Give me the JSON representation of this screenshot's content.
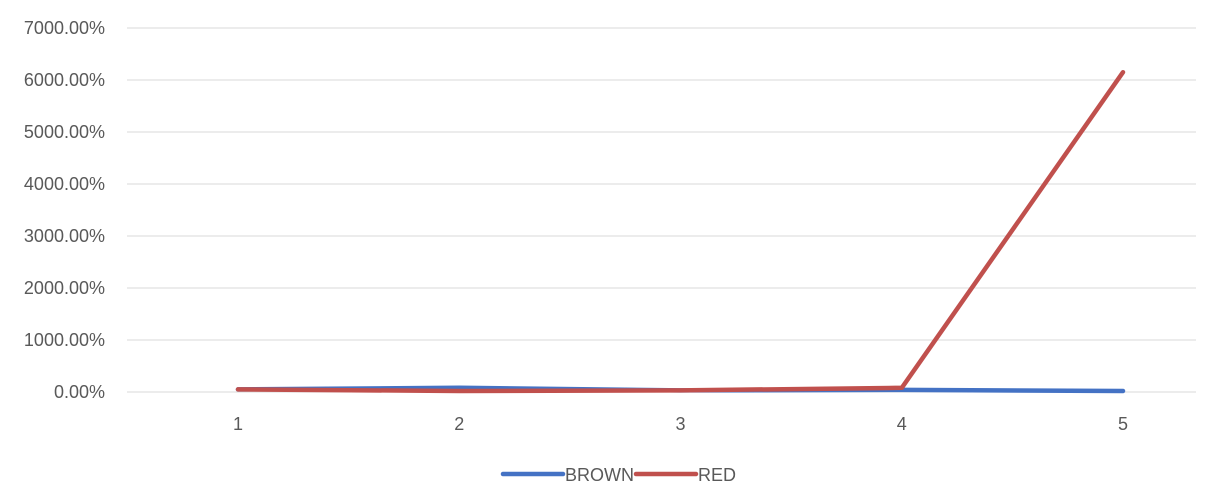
{
  "chart_data": {
    "type": "line",
    "title": "",
    "xlabel": "",
    "ylabel": "",
    "categories": [
      "1",
      "2",
      "3",
      "4",
      "5"
    ],
    "y_tick_labels": [
      "0.00%",
      "1000.00%",
      "2000.00%",
      "3000.00%",
      "4000.00%",
      "5000.00%",
      "6000.00%",
      "7000.00%"
    ],
    "y_ticks": [
      0,
      1000,
      2000,
      3000,
      4000,
      5000,
      6000,
      7000
    ],
    "ylim": [
      0,
      7000
    ],
    "y_unit": "%",
    "grid": true,
    "legend_position": "bottom",
    "series": [
      {
        "name": "BROWN",
        "color": "#4472C4",
        "values": [
          50,
          80,
          30,
          40,
          20
        ]
      },
      {
        "name": "RED",
        "color": "#C0504D",
        "values": [
          50,
          20,
          30,
          80,
          6150
        ]
      }
    ]
  }
}
